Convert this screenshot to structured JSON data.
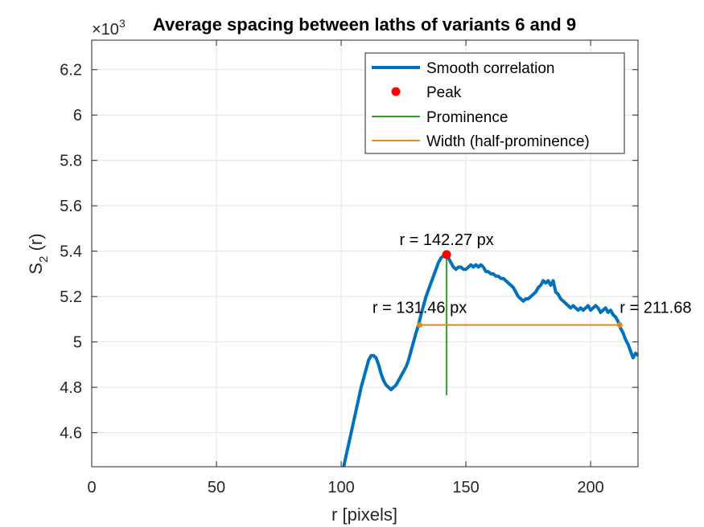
{
  "chart_data": {
    "type": "line",
    "title": "Average spacing between laths of variants 6 and 9",
    "xlabel": "r [pixels]",
    "ylabel_main": "S",
    "ylabel_sub": "2",
    "ylabel_tail": " (r)",
    "y_exponent_label": "×10",
    "y_exponent_power": "3",
    "xlim": [
      0,
      219
    ],
    "ylim": [
      4.45,
      6.33
    ],
    "x_ticks": [
      0,
      50,
      100,
      150,
      200
    ],
    "x_tick_labels": [
      "0",
      "50",
      "100",
      "150",
      "200"
    ],
    "y_ticks": [
      4.6,
      4.8,
      5.0,
      5.2,
      5.4,
      5.6,
      5.8,
      6.0,
      6.2
    ],
    "y_tick_labels": [
      "4.6",
      "4.8",
      "5",
      "5.2",
      "5.4",
      "5.6",
      "5.8",
      "6",
      "6.2"
    ],
    "grid": true,
    "legend_position": "top-right",
    "series": [
      {
        "name": "Smooth correlation",
        "color": "#0072BD",
        "points": [
          [
            101,
            4.45
          ],
          [
            104,
            4.6
          ],
          [
            106,
            4.7
          ],
          [
            108,
            4.8
          ],
          [
            110,
            4.88
          ],
          [
            111,
            4.92
          ],
          [
            112,
            4.94
          ],
          [
            113,
            4.94
          ],
          [
            114,
            4.93
          ],
          [
            115,
            4.9
          ],
          [
            116,
            4.86
          ],
          [
            117,
            4.83
          ],
          [
            118,
            4.81
          ],
          [
            119,
            4.8
          ],
          [
            120,
            4.79
          ],
          [
            121,
            4.8
          ],
          [
            122,
            4.81
          ],
          [
            123,
            4.83
          ],
          [
            124,
            4.85
          ],
          [
            125,
            4.87
          ],
          [
            126,
            4.89
          ],
          [
            127,
            4.92
          ],
          [
            128,
            4.96
          ],
          [
            129,
            5.0
          ],
          [
            130,
            5.04
          ],
          [
            131,
            5.075
          ],
          [
            132,
            5.12
          ],
          [
            133,
            5.16
          ],
          [
            134,
            5.2
          ],
          [
            135,
            5.23
          ],
          [
            136,
            5.26
          ],
          [
            137,
            5.29
          ],
          [
            138,
            5.32
          ],
          [
            139,
            5.35
          ],
          [
            140,
            5.37
          ],
          [
            141,
            5.38
          ],
          [
            142.27,
            5.385
          ],
          [
            143,
            5.37
          ],
          [
            144,
            5.35
          ],
          [
            145,
            5.33
          ],
          [
            146,
            5.32
          ],
          [
            147,
            5.33
          ],
          [
            148,
            5.33
          ],
          [
            149,
            5.32
          ],
          [
            150,
            5.32
          ],
          [
            151,
            5.33
          ],
          [
            152,
            5.34
          ],
          [
            153,
            5.33
          ],
          [
            154,
            5.34
          ],
          [
            155,
            5.33
          ],
          [
            156,
            5.34
          ],
          [
            157,
            5.33
          ],
          [
            158,
            5.31
          ],
          [
            159,
            5.31
          ],
          [
            160,
            5.3
          ],
          [
            161,
            5.3
          ],
          [
            162,
            5.29
          ],
          [
            163,
            5.29
          ],
          [
            164,
            5.28
          ],
          [
            165,
            5.28
          ],
          [
            166,
            5.27
          ],
          [
            167,
            5.26
          ],
          [
            168,
            5.25
          ],
          [
            169,
            5.24
          ],
          [
            170,
            5.22
          ],
          [
            171,
            5.2
          ],
          [
            172,
            5.19
          ],
          [
            173,
            5.18
          ],
          [
            174,
            5.19
          ],
          [
            175,
            5.19
          ],
          [
            176,
            5.2
          ],
          [
            177,
            5.21
          ],
          [
            178,
            5.22
          ],
          [
            179,
            5.24
          ],
          [
            180,
            5.25
          ],
          [
            181,
            5.27
          ],
          [
            182,
            5.26
          ],
          [
            183,
            5.27
          ],
          [
            184,
            5.25
          ],
          [
            185,
            5.27
          ],
          [
            186,
            5.22
          ],
          [
            187,
            5.21
          ],
          [
            188,
            5.19
          ],
          [
            189,
            5.18
          ],
          [
            190,
            5.17
          ],
          [
            191,
            5.16
          ],
          [
            192,
            5.15
          ],
          [
            193,
            5.16
          ],
          [
            194,
            5.15
          ],
          [
            195,
            5.14
          ],
          [
            196,
            5.15
          ],
          [
            197,
            5.14
          ],
          [
            198,
            5.15
          ],
          [
            199,
            5.16
          ],
          [
            200,
            5.14
          ],
          [
            201,
            5.15
          ],
          [
            202,
            5.16
          ],
          [
            203,
            5.15
          ],
          [
            204,
            5.13
          ],
          [
            205,
            5.14
          ],
          [
            206,
            5.15
          ],
          [
            207,
            5.13
          ],
          [
            208,
            5.14
          ],
          [
            209,
            5.12
          ],
          [
            210,
            5.11
          ],
          [
            211,
            5.09
          ],
          [
            211.68,
            5.075
          ],
          [
            212,
            5.06
          ],
          [
            213,
            5.04
          ],
          [
            214,
            5.01
          ],
          [
            215,
            4.99
          ],
          [
            216,
            4.96
          ],
          [
            217,
            4.93
          ],
          [
            218,
            4.95
          ],
          [
            219,
            4.94
          ]
        ]
      }
    ],
    "peak": {
      "name": "Peak",
      "x": 142.27,
      "y": 5.385,
      "color": "#FF0000"
    },
    "prominence": {
      "name": "Prominence",
      "x": 142.27,
      "y_low": 4.765,
      "y_high": 5.385,
      "color": "#2CA02C"
    },
    "width": {
      "name": "Width (half-prominence)",
      "x_left": 131.46,
      "x_right": 211.68,
      "y": 5.075,
      "color": "#E08A1E"
    },
    "annotations": [
      {
        "text": "r = 142.27 px",
        "x": 142.27,
        "y": 5.385
      },
      {
        "text": "r = 131.46 px",
        "x": 131.46,
        "y": 5.075
      },
      {
        "text": "r = 211.68",
        "x": 211.68,
        "y": 5.075
      }
    ]
  }
}
